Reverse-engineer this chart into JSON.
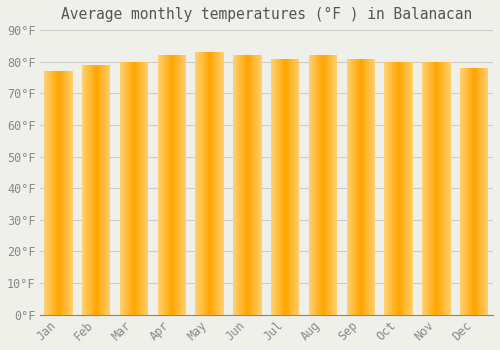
{
  "months": [
    "Jan",
    "Feb",
    "Mar",
    "Apr",
    "May",
    "Jun",
    "Jul",
    "Aug",
    "Sep",
    "Oct",
    "Nov",
    "Dec"
  ],
  "values": [
    77,
    79,
    80,
    82,
    83,
    82,
    81,
    82,
    81,
    80,
    80,
    78
  ],
  "bar_color_center": "#FFA500",
  "bar_color_edge": "#FFD070",
  "background_color": "#F0F0EB",
  "grid_color": "#CCCCCC",
  "title": "Average monthly temperatures (°F ) in Balanacan",
  "title_fontsize": 10.5,
  "tick_fontsize": 8.5,
  "ylim": [
    0,
    90
  ],
  "ytick_step": 10,
  "bar_width": 0.75
}
